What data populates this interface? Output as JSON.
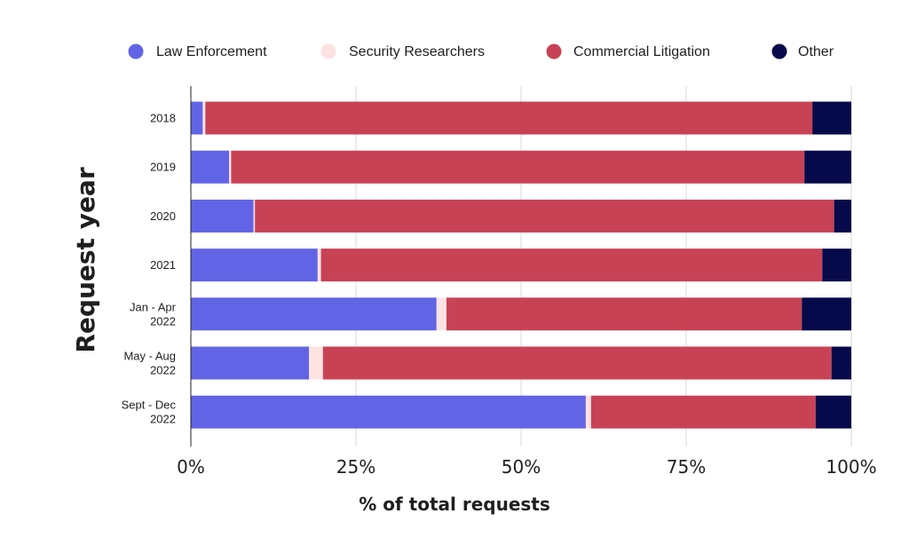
{
  "chart_data": {
    "type": "bar",
    "orientation": "horizontal",
    "stacked": true,
    "xlabel": "% of total requests",
    "ylabel": "Request year",
    "xlim": [
      0,
      100
    ],
    "x_ticks": [
      "0%",
      "25%",
      "50%",
      "75%",
      "100%"
    ],
    "x_tick_values": [
      0,
      25,
      50,
      75,
      100
    ],
    "grid": true,
    "legend_position": "top",
    "categories": [
      [
        "2018"
      ],
      [
        "2019"
      ],
      [
        "2020"
      ],
      [
        "2021"
      ],
      [
        "Jan - Apr",
        "2022"
      ],
      [
        "May - Aug",
        "2022"
      ],
      [
        "Sept - Dec",
        "2022"
      ]
    ],
    "series": [
      {
        "name": "Law Enforcement",
        "color": "#6264e6",
        "values": [
          1.8,
          5.8,
          9.5,
          19.2,
          37.2,
          17.9,
          59.8
        ]
      },
      {
        "name": "Security Researchers",
        "color": "#fde2e2",
        "values": [
          0.4,
          0.3,
          0.2,
          0.5,
          1.5,
          2.1,
          0.8
        ]
      },
      {
        "name": "Commercial Litigation",
        "color": "#c84255",
        "values": [
          91.9,
          86.8,
          87.7,
          75.9,
          53.8,
          77.0,
          34.0
        ]
      },
      {
        "name": "Other",
        "color": "#070a4a",
        "values": [
          5.9,
          7.1,
          2.6,
          4.4,
          7.5,
          3.0,
          5.4
        ]
      }
    ]
  }
}
